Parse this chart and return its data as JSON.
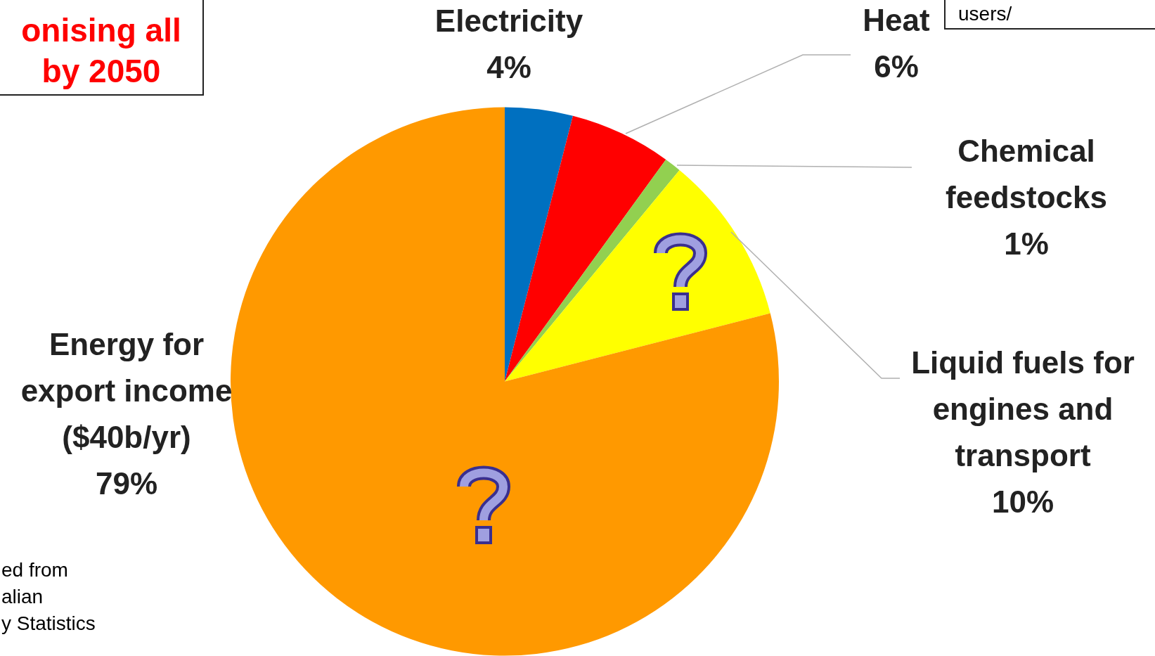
{
  "chart_data": {
    "type": "pie",
    "title": "onising all\nby 2050",
    "categories": [
      "Electricity",
      "Heat",
      "Chemical feedstocks",
      "Liquid fuels for engines and transport",
      "Energy for export income ($40b/yr)"
    ],
    "values": [
      4,
      6,
      1,
      10,
      79
    ],
    "colors": [
      "#0070c0",
      "#ff0000",
      "#92d050",
      "#ffff00",
      "#ff9900"
    ],
    "value_labels": [
      "4%",
      "6%",
      "1%",
      "10%",
      "79%"
    ],
    "legend": false,
    "annotations": [
      "users/",
      "ed from\nalian\ny Statistics"
    ]
  }
}
